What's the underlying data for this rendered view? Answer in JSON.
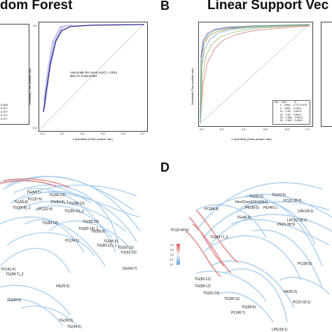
{
  "panels": {
    "a": {
      "title_fragment": "dom Forest",
      "legend_fragment": [
        "0.884",
        "",
        "0.977",
        "0.977",
        "0.977",
        "0.977"
      ],
      "roc": {
        "auc_line1": "Area under the curve (AUC) = 0.921",
        "auc_line2": "95% CI: 0.834-0.987",
        "xlabel": "1-Specificity (False positive rate)",
        "ylabel": "Sensitivity (True positive rate)",
        "ticks": [
          "0.0",
          "0.2",
          "0.4",
          "0.6",
          "0.8",
          "1.0"
        ]
      }
    },
    "b": {
      "letter": "B",
      "title_fragment": "Linear Support Vec",
      "xlabel": "1-Specificity (False positive rate)",
      "ylabel": "Sensitivity (True positive rate)",
      "ticks": [
        "0.0",
        "0.2",
        "0.4",
        "0.6",
        "0.8",
        "1.0"
      ],
      "legend": {
        "header": [
          "Var.",
          "AUC",
          "CI"
        ],
        "rows": [
          [
            "2",
            "0.854",
            "0.717-0.978"
          ],
          [
            "3",
            "0.891",
            "0.769-1"
          ],
          [
            "10",
            "0.95",
            "0.833-1"
          ],
          [
            "20",
            "0.95",
            "0.883-1"
          ],
          [
            "46",
            "0.966",
            "0.934-1"
          ],
          [
            "55",
            "0.962",
            "0.894-1"
          ]
        ]
      }
    },
    "c": {
      "labels": [
        "TG(54:7)",
        "TG(56:12)",
        "TG(56:8)_1",
        "LPC(22:4)",
        "TG(54:9)_1",
        "TG(55:8)",
        "TG(56:11)_2",
        "TG(58:12)",
        "TG(60:12)",
        "PC(34:1)",
        "TG(58:10)",
        "TG(62:14)_1",
        "TG(58:9)",
        "TG(56:9)",
        "TG(62:13)",
        "TG(62:12)",
        "PC(41:4)",
        "TG(58:7)_2",
        "FA(20:5)",
        "TG(42:0)",
        "TG(36:0)",
        "TG(34:0)",
        "DG(40:7)",
        "TG(60:12)_1",
        "PC(37:5)"
      ]
    },
    "d": {
      "letter": "D",
      "labels": [
        "TG(52:6)",
        "TG(52:5)",
        "Hex2Cer(d18:1/24:1)",
        "PE(36:5)",
        "PE(40:1)",
        "PC(34:4)",
        "PC(O-36:0)",
        "LPC(O-18:1)",
        "LPE(18:1)",
        "TG(46:3)",
        "PE(O-38:5)",
        "PC(O-40:6)",
        "TG(54:7)_3",
        "TG(60:12)",
        "TG(58:12)",
        "PC(36:5)",
        "TG(62:14)",
        "TG(56:11)",
        "TG(58:9)",
        "PC(40:7)",
        "LPE(18:1)",
        "FA(20:5)",
        "PC(O-32:1)"
      ],
      "colorbar_ticks": [
        "1.0",
        "0.5",
        "0.0",
        "-0.5",
        "-1.0"
      ]
    }
  },
  "colors": {
    "network_blue": "#9ec9ec",
    "network_red": "#e07a7a",
    "roc_fill": "#c9c9ee",
    "roc_line": "#2a2a88"
  }
}
